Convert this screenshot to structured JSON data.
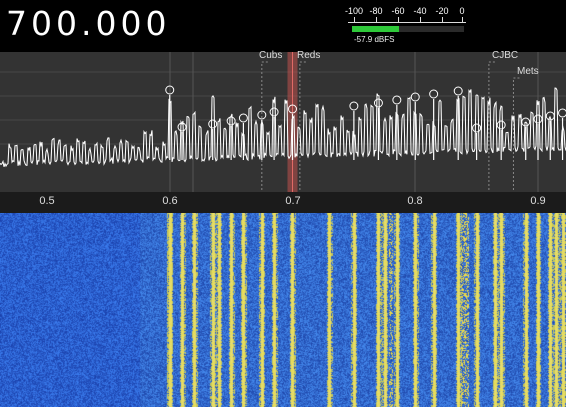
{
  "frequency_display": "700.000",
  "signal_meter": {
    "scale_labels": [
      "-100",
      "-80",
      "-60",
      "-40",
      "-20",
      "0"
    ],
    "level_text": "-57.9 dBFS",
    "level_fraction": 0.42,
    "fill_color": "#2fc93a"
  },
  "markers": [
    {
      "label": "Cubs",
      "freq": 0.675
    },
    {
      "label": "Reds",
      "freq": 0.706
    },
    {
      "label": "CJBC",
      "freq": 0.86
    },
    {
      "label": "Mets",
      "freq": 0.88
    }
  ],
  "tuned_frequency": 0.7,
  "x_axis": {
    "min": 0.463,
    "max": 0.925,
    "ticks": [
      "0.5",
      "0.6",
      "0.7",
      "0.8",
      "0.9"
    ]
  },
  "peak_marks": [
    0.6,
    0.61,
    0.635,
    0.65,
    0.66,
    0.675,
    0.685,
    0.7,
    0.75,
    0.77,
    0.785,
    0.8,
    0.815,
    0.835,
    0.85,
    0.87,
    0.89,
    0.9,
    0.91,
    0.92
  ],
  "colors": {
    "spectrum_trace": "#ffffff",
    "tuned_band": "#c0504d",
    "waterfall_base": "#2a48c8",
    "waterfall_signal": "#f2e44a"
  }
}
